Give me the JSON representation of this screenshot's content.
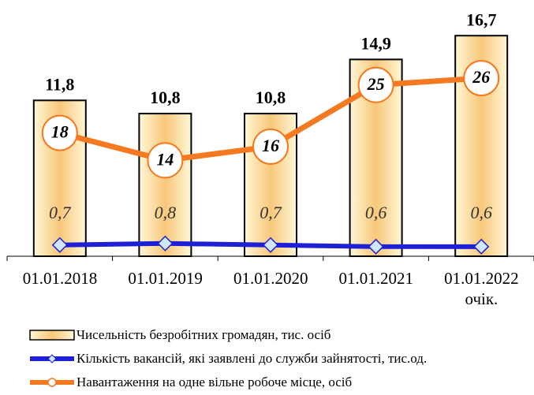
{
  "chart_data": {
    "type": "bar",
    "categories": [
      "01.01.2018",
      "01.01.2019",
      "01.01.2020",
      "01.01.2021",
      "01.01.2022 очік."
    ],
    "ylim": [
      0,
      19.4
    ],
    "y2lim": [
      0,
      37.4
    ],
    "y3lim": [
      0,
      16
    ],
    "series": [
      {
        "name": "Чисельність безробітних громадян, тис. осіб",
        "type": "bar",
        "color": "#fbd38a",
        "values": [
          11.8,
          10.8,
          10.8,
          14.9,
          16.7
        ],
        "value_labels": [
          "11,8",
          "10,8",
          "10,8",
          "14,9",
          "16,7"
        ]
      },
      {
        "name": "Кількість вакансій, які заявлені до служби зайнятості, тис.од.",
        "type": "line",
        "axis": "y3",
        "color": "#1f1fd6",
        "values": [
          0.7,
          0.8,
          0.7,
          0.6,
          0.6
        ],
        "value_labels": [
          "0,7",
          "0,8",
          "0,7",
          "0,6",
          "0,6"
        ]
      },
      {
        "name": "Навантаження на одне вільне робоче місце, осіб",
        "type": "line",
        "axis": "y2",
        "color": "#f47920",
        "values": [
          18,
          14,
          16,
          25,
          26
        ]
      }
    ]
  }
}
